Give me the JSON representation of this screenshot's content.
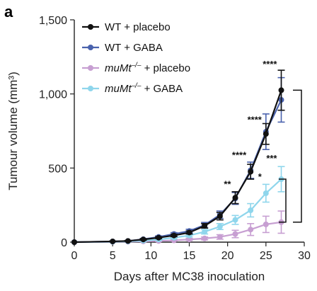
{
  "panel_label": "a",
  "chart_data": {
    "type": "line",
    "xlabel": "Days after MC38 inoculation",
    "ylabel": "Tumour volume (mm³)",
    "xlim": [
      0,
      30
    ],
    "ylim": [
      0,
      1500
    ],
    "xticks": [
      0,
      5,
      10,
      15,
      20,
      25,
      30
    ],
    "xtick_labels": [
      "0",
      "5",
      "10",
      "15",
      "20",
      "25",
      "30"
    ],
    "yticks": [
      0,
      500,
      1000,
      1500
    ],
    "ytick_labels": [
      "0",
      "500",
      "1,000",
      "1,500"
    ],
    "x": [
      0,
      5,
      7,
      9,
      11,
      13,
      15,
      17,
      19,
      21,
      23,
      25,
      27
    ],
    "legend_position": "top-left",
    "grid": false,
    "series": [
      {
        "name_plain": "WT + placebo",
        "color": "#111111",
        "values": [
          0,
          5,
          8,
          18,
          30,
          45,
          65,
          110,
          175,
          300,
          475,
          730,
          1025
        ],
        "errors": [
          0,
          2,
          3,
          5,
          6,
          8,
          10,
          15,
          25,
          40,
          50,
          70,
          135
        ]
      },
      {
        "name_plain": "WT + GABA",
        "color": "#4a62ad",
        "values": [
          0,
          5,
          8,
          20,
          35,
          55,
          75,
          115,
          185,
          295,
          485,
          745,
          960
        ],
        "errors": [
          0,
          2,
          3,
          5,
          7,
          9,
          12,
          18,
          25,
          40,
          55,
          120,
          150
        ]
      },
      {
        "name_italic": "muMt",
        "name_sup": "–/–",
        "name_rest": " + placebo",
        "color": "#c79fd2",
        "values": [
          0,
          2,
          3,
          5,
          8,
          12,
          18,
          25,
          35,
          55,
          85,
          120,
          135
        ],
        "errors": [
          0,
          1,
          2,
          3,
          4,
          5,
          7,
          10,
          15,
          25,
          40,
          55,
          75
        ]
      },
      {
        "name_italic": "muMt",
        "name_sup": "–/–",
        "name_rest": " + GABA",
        "color": "#8fd6ec",
        "values": [
          0,
          3,
          5,
          10,
          18,
          30,
          45,
          70,
          105,
          150,
          215,
          330,
          425
        ],
        "errors": [
          0,
          2,
          3,
          4,
          6,
          8,
          10,
          15,
          20,
          30,
          45,
          60,
          85
        ]
      }
    ],
    "annotations": [
      {
        "text": "**",
        "x": 21,
        "y": 370
      },
      {
        "text": "****",
        "x": 23,
        "y": 565
      },
      {
        "text": "****",
        "x": 25,
        "y": 805
      },
      {
        "text": "****",
        "x": 27,
        "y": 1180
      },
      {
        "text": "*",
        "x": 25,
        "y": 420
      },
      {
        "text": "***",
        "x": 27,
        "y": 545
      }
    ],
    "comparison_brackets": [
      {
        "from_series": 0,
        "to_series": 2
      },
      {
        "from_series": 3,
        "to_series": 2
      }
    ]
  }
}
